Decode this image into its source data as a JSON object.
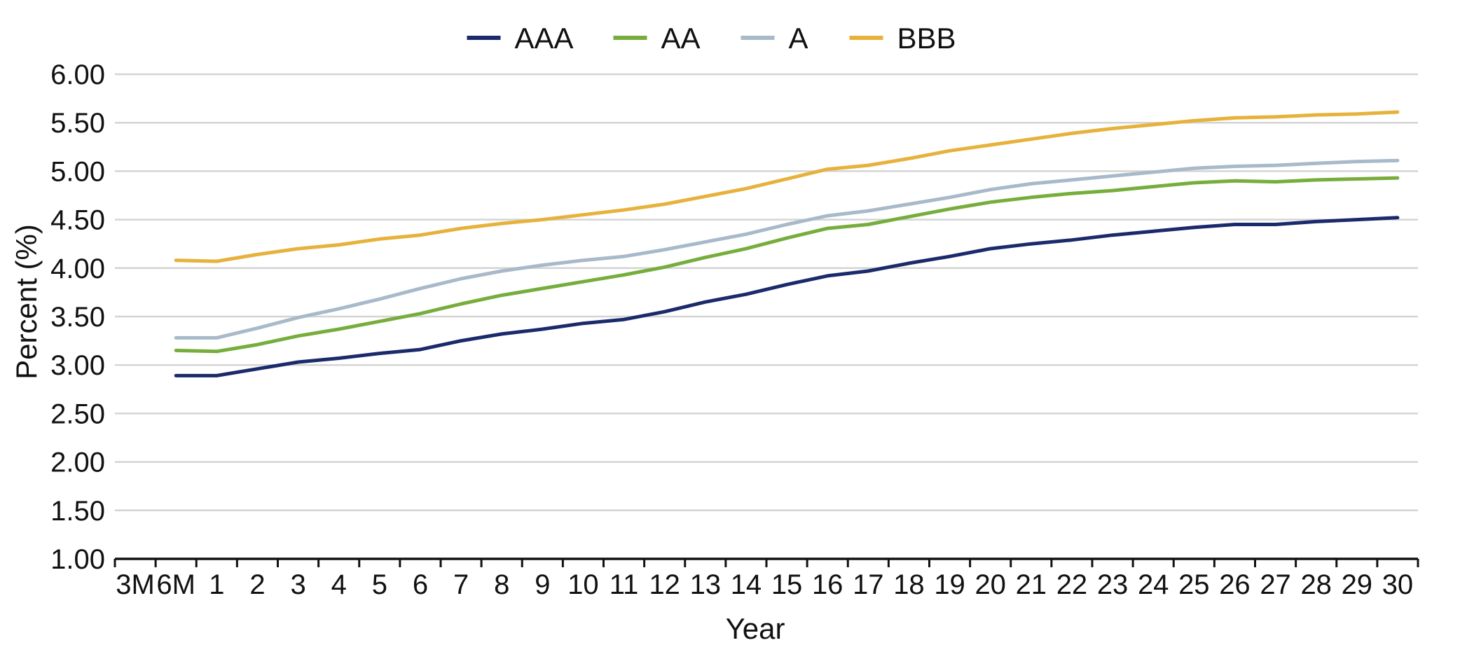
{
  "chart_data": {
    "type": "line",
    "title": "",
    "xlabel": "Year",
    "ylabel": "Percent (%)",
    "ylim": [
      1.0,
      6.0
    ],
    "yticks": [
      "1.00",
      "1.50",
      "2.00",
      "2.50",
      "3.00",
      "3.50",
      "4.00",
      "4.50",
      "5.00",
      "5.50",
      "6.00"
    ],
    "grid": true,
    "legend_position": "top",
    "categories": [
      "3M",
      "6M",
      "1",
      "2",
      "3",
      "4",
      "5",
      "6",
      "7",
      "8",
      "9",
      "10",
      "11",
      "12",
      "13",
      "14",
      "15",
      "16",
      "17",
      "18",
      "19",
      "20",
      "21",
      "22",
      "23",
      "24",
      "25",
      "26",
      "27",
      "28",
      "29",
      "30"
    ],
    "series": [
      {
        "name": "AAA",
        "color": "#1b2a6b",
        "values": [
          null,
          2.89,
          2.89,
          2.96,
          3.03,
          3.07,
          3.12,
          3.16,
          3.25,
          3.32,
          3.37,
          3.43,
          3.47,
          3.55,
          3.65,
          3.73,
          3.83,
          3.92,
          3.97,
          4.05,
          4.12,
          4.2,
          4.25,
          4.29,
          4.34,
          4.38,
          4.42,
          4.45,
          4.45,
          4.48,
          4.5,
          4.52
        ]
      },
      {
        "name": "AA",
        "color": "#77ad3c",
        "values": [
          null,
          3.15,
          3.14,
          3.21,
          3.3,
          3.37,
          3.45,
          3.53,
          3.63,
          3.72,
          3.79,
          3.86,
          3.93,
          4.01,
          4.11,
          4.2,
          4.31,
          4.41,
          4.45,
          4.53,
          4.61,
          4.68,
          4.73,
          4.77,
          4.8,
          4.84,
          4.88,
          4.9,
          4.89,
          4.91,
          4.92,
          4.93
        ]
      },
      {
        "name": "A",
        "color": "#a8b9c9",
        "values": [
          null,
          3.28,
          3.28,
          3.38,
          3.49,
          3.58,
          3.68,
          3.79,
          3.89,
          3.97,
          4.03,
          4.08,
          4.12,
          4.19,
          4.27,
          4.35,
          4.45,
          4.54,
          4.59,
          4.66,
          4.73,
          4.81,
          4.87,
          4.91,
          4.95,
          4.99,
          5.03,
          5.05,
          5.06,
          5.08,
          5.1,
          5.11
        ]
      },
      {
        "name": "BBB",
        "color": "#e6b23c",
        "values": [
          null,
          4.08,
          4.07,
          4.14,
          4.2,
          4.24,
          4.3,
          4.34,
          4.41,
          4.46,
          4.5,
          4.55,
          4.6,
          4.66,
          4.74,
          4.82,
          4.92,
          5.02,
          5.06,
          5.13,
          5.21,
          5.27,
          5.33,
          5.39,
          5.44,
          5.48,
          5.52,
          5.55,
          5.56,
          5.58,
          5.59,
          5.61
        ]
      }
    ]
  }
}
